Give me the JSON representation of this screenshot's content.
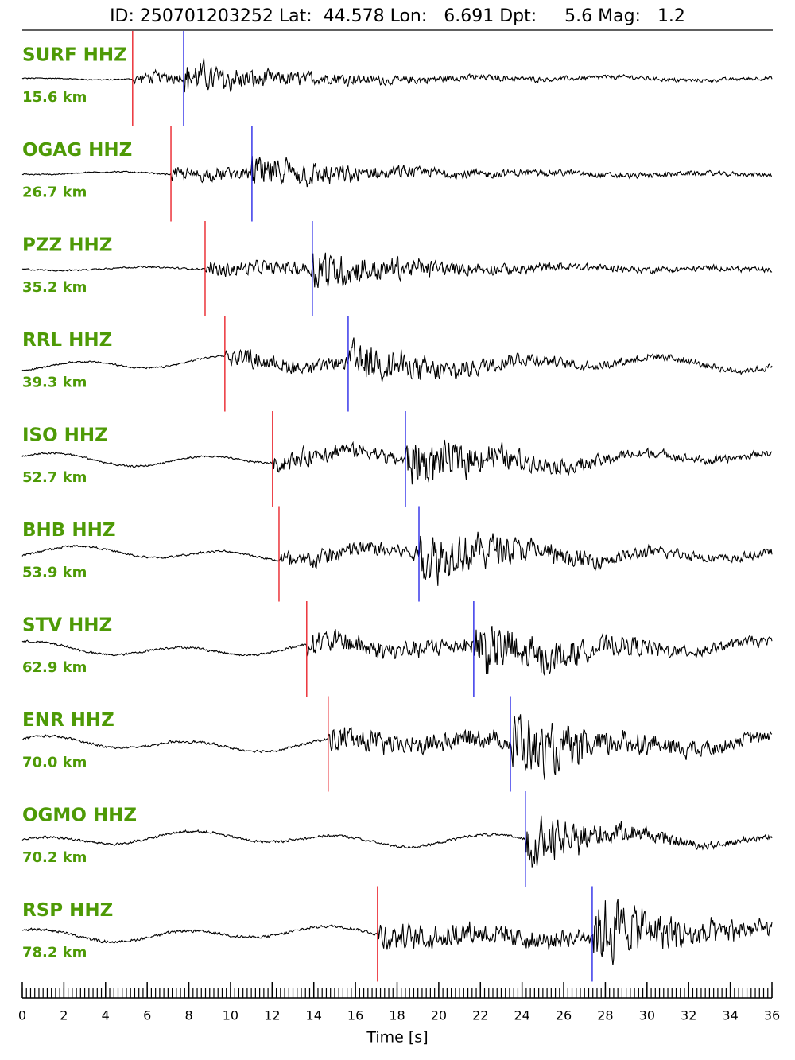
{
  "chart_data": {
    "type": "seismogram",
    "title": "ID: 250701203252 Lat:  44.578 Lon:   6.691 Dpt:     5.6 Mag:   1.2",
    "xlabel": "Time [s]",
    "xlim": [
      0,
      36
    ],
    "xticks": [
      0,
      2,
      4,
      6,
      8,
      10,
      12,
      14,
      16,
      18,
      20,
      22,
      24,
      26,
      28,
      30,
      32,
      34,
      36
    ],
    "xminor_interval": 0.2,
    "label_color": "#4e9a06",
    "p_color": "#e8141c",
    "s_color": "#1a1ae6",
    "traces": [
      {
        "name": "SURF HHZ",
        "distance": "15.6 km",
        "p_pick": 5.3,
        "s_pick": 7.75
      },
      {
        "name": "OGAG HHZ",
        "distance": "26.7 km",
        "p_pick": 7.14,
        "s_pick": 11.03
      },
      {
        "name": "PZZ HHZ",
        "distance": "35.2 km",
        "p_pick": 8.78,
        "s_pick": 13.93
      },
      {
        "name": "RRL HHZ",
        "distance": "39.3 km",
        "p_pick": 9.73,
        "s_pick": 15.65
      },
      {
        "name": "ISO HHZ",
        "distance": "52.7 km",
        "p_pick": 12.02,
        "s_pick": 18.4
      },
      {
        "name": "BHB HHZ",
        "distance": "53.9 km",
        "p_pick": 12.33,
        "s_pick": 19.05
      },
      {
        "name": "STV HHZ",
        "distance": "62.9 km",
        "p_pick": 13.66,
        "s_pick": 21.68
      },
      {
        "name": "ENR HHZ",
        "distance": "70.0 km",
        "p_pick": 14.69,
        "s_pick": 23.44
      },
      {
        "name": "OGMO HHZ",
        "distance": "70.2 km",
        "p_pick": null,
        "s_pick": 24.16
      },
      {
        "name": "RSP HHZ",
        "distance": "78.2 km",
        "p_pick": 17.06,
        "s_pick": 27.37
      }
    ]
  }
}
